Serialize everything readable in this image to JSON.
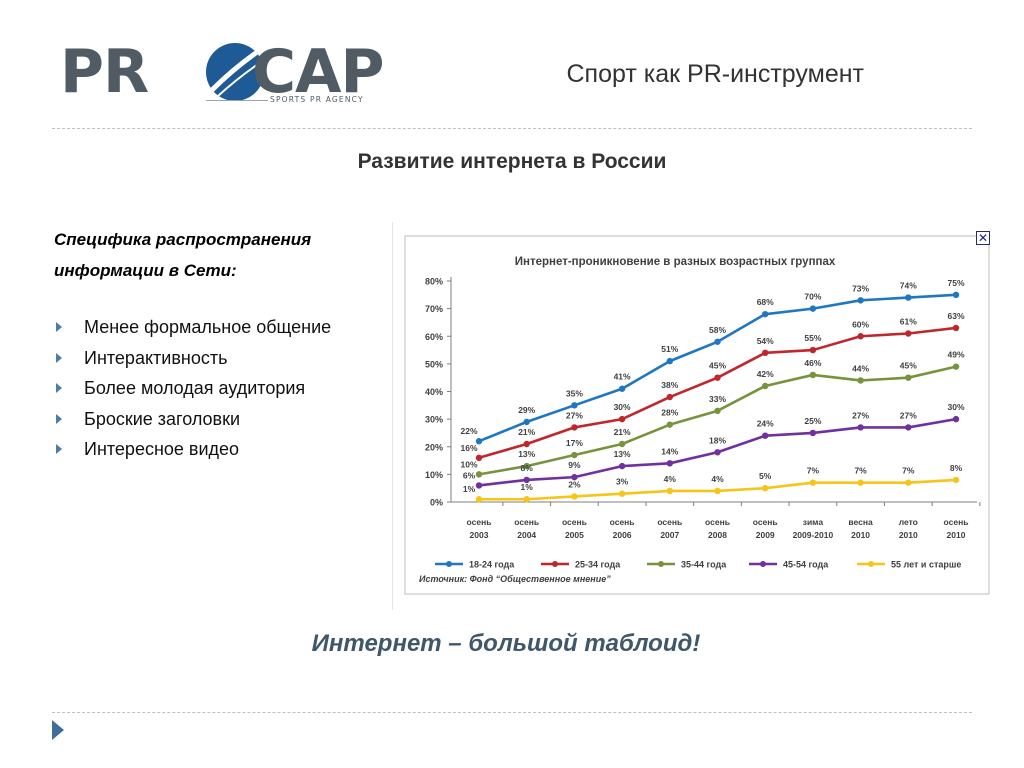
{
  "logo": {
    "left_text": "PR",
    "right_text": "CAP",
    "tagline": "SPORTS PR AGENCY",
    "color": "#505b64",
    "accent": "#1d5a96"
  },
  "deck_title": "Спорт как PR-инструмент",
  "slide_heading": "Развитие интернета в России",
  "subhead": "Специфика распространения информации в Сети:",
  "bullets": [
    "Менее формальное общение",
    "Интерактивность",
    "Более молодая аудитория",
    "Броские заголовки",
    "Интересное видео"
  ],
  "tagline": "Интернет – большой таблоид!",
  "icons": {
    "close": "close-icon",
    "bullet": "triangle-bullet-icon",
    "next": "next-slide-arrow-icon"
  },
  "chart_data": {
    "type": "line",
    "title": "Интернет-проникновение в разных возрастных группах",
    "source": "Источник:  Фонд “Общественное мнение”",
    "xlabel": "",
    "ylabel": "",
    "ylim": [
      0,
      80
    ],
    "yticks": [
      "0%",
      "10%",
      "20%",
      "30%",
      "40%",
      "50%",
      "60%",
      "70%",
      "80%"
    ],
    "grid": false,
    "legend_position": "bottom",
    "categories": [
      [
        "осень",
        "2003"
      ],
      [
        "осень",
        "2004"
      ],
      [
        "осень",
        "2005"
      ],
      [
        "осень",
        "2006"
      ],
      [
        "осень",
        "2007"
      ],
      [
        "осень",
        "2008"
      ],
      [
        "осень",
        "2009"
      ],
      [
        "зима",
        "2009-2010"
      ],
      [
        "весна",
        "2010"
      ],
      [
        "лето",
        "2010"
      ],
      [
        "осень",
        "2010"
      ]
    ],
    "series": [
      {
        "name": "18-24 года",
        "color": "#1f77c4",
        "values": [
          22,
          29,
          35,
          41,
          51,
          58,
          68,
          70,
          73,
          74,
          75
        ]
      },
      {
        "name": "25-34 года",
        "color": "#c0272d",
        "values": [
          16,
          21,
          27,
          30,
          38,
          45,
          54,
          55,
          60,
          61,
          63
        ]
      },
      {
        "name": "35-44 года",
        "color": "#77933c",
        "values": [
          10,
          13,
          17,
          21,
          28,
          33,
          42,
          46,
          44,
          45,
          49
        ]
      },
      {
        "name": "45-54 года",
        "color": "#7030a0",
        "values": [
          6,
          8,
          9,
          13,
          14,
          18,
          24,
          25,
          27,
          27,
          30
        ]
      },
      {
        "name": "55 лет и старше",
        "color": "#f5c518",
        "values": [
          1,
          1,
          2,
          3,
          4,
          4,
          5,
          7,
          7,
          7,
          8
        ]
      }
    ],
    "data_labels": [
      [
        "22%",
        "29%",
        "35%",
        "41%",
        "51%",
        "58%",
        "68%",
        "70%",
        "73%",
        "74%",
        "75%"
      ],
      [
        "16%",
        "21%",
        "27%",
        "30%",
        "38%",
        "45%",
        "54%",
        "55%",
        "60%",
        "61%",
        "63%"
      ],
      [
        "10%",
        "13%",
        "17%",
        "21%",
        "28%",
        "33%",
        "42%",
        "46%",
        "44%",
        "45%",
        "49%"
      ],
      [
        "6%",
        "8%",
        "9%",
        "13%",
        "14%",
        "18%",
        "24%",
        "25%",
        "27%",
        "27%",
        "30%"
      ],
      [
        "1%",
        "1%",
        "2%",
        "3%",
        "4%",
        "4%",
        "5%",
        "7%",
        "7%",
        "7%",
        "8%"
      ]
    ]
  }
}
